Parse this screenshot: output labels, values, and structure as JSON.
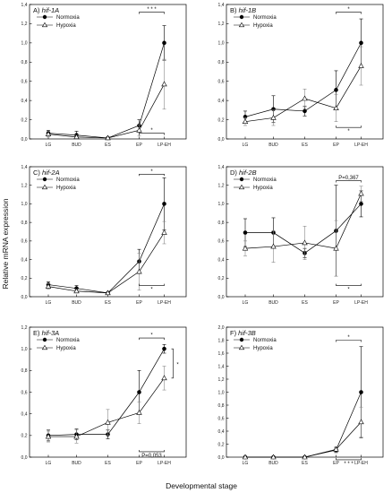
{
  "ylabel": "Relative mRNA expression",
  "xlabel": "Developmental stage",
  "chart_data": [
    {
      "type": "line",
      "letter": "A)",
      "gene": "hif-1A",
      "categories": [
        "LG",
        "BUD",
        "ES",
        "EP",
        "LP-EH"
      ],
      "ylim": [
        0,
        1.4
      ],
      "yticks": [
        "0,0",
        "0,2",
        "0,4",
        "0,6",
        "0,8",
        "1,0",
        "1,2",
        "1,4"
      ],
      "series": [
        {
          "name": "Normoxia",
          "values": [
            0.06,
            0.04,
            0.01,
            0.14,
            1.0
          ],
          "err": [
            0.03,
            0.04,
            0.01,
            0.06,
            0.18
          ]
        },
        {
          "name": "Hypoxia",
          "values": [
            0.05,
            0.02,
            0.01,
            0.09,
            0.57
          ],
          "err": [
            0.03,
            0.02,
            0.01,
            0.06,
            0.26
          ]
        }
      ],
      "annotations": [
        {
          "text": "* * *",
          "from": 3,
          "to": 4,
          "y": 1.32,
          "side": "above"
        },
        {
          "text": "*",
          "from": 3,
          "to": 4,
          "y": 0.06,
          "side": "above"
        }
      ]
    },
    {
      "type": "line",
      "letter": "B)",
      "gene": "hif-1B",
      "categories": [
        "LG",
        "BUD",
        "ES",
        "EP",
        "LP-EH"
      ],
      "ylim": [
        0,
        1.4
      ],
      "yticks": [
        "0,0",
        "0,2",
        "0,4",
        "0,6",
        "0,8",
        "1,0",
        "1,2",
        "1,4"
      ],
      "series": [
        {
          "name": "Normoxia",
          "values": [
            0.23,
            0.31,
            0.29,
            0.51,
            1.0
          ],
          "err": [
            0.06,
            0.14,
            0.05,
            0.2,
            0.25
          ]
        },
        {
          "name": "Hypoxia",
          "values": [
            0.18,
            0.22,
            0.42,
            0.32,
            0.76
          ],
          "err": [
            0.04,
            0.08,
            0.1,
            0.14,
            0.2
          ]
        }
      ],
      "annotations": [
        {
          "text": "*",
          "from": 3,
          "to": 4,
          "y": 1.32,
          "side": "above"
        },
        {
          "text": "*",
          "from": 3,
          "to": 4,
          "y": 0.12,
          "side": "below"
        }
      ]
    },
    {
      "type": "line",
      "letter": "C)",
      "gene": "hif-2A",
      "categories": [
        "LG",
        "BUD",
        "ES",
        "EP",
        "LP-EH"
      ],
      "ylim": [
        0,
        1.4
      ],
      "yticks": [
        "0,0",
        "0,2",
        "0,4",
        "0,6",
        "0,8",
        "1,0",
        "1,2",
        "1,4"
      ],
      "series": [
        {
          "name": "Normoxia",
          "values": [
            0.13,
            0.09,
            0.04,
            0.38,
            1.0
          ],
          "err": [
            0.03,
            0.03,
            0.01,
            0.13,
            0.28
          ]
        },
        {
          "name": "Hypoxia",
          "values": [
            0.11,
            0.06,
            0.04,
            0.27,
            0.69
          ],
          "err": [
            0.03,
            0.02,
            0.01,
            0.2,
            0.12
          ]
        }
      ],
      "annotations": [
        {
          "text": "*",
          "from": 3,
          "to": 4,
          "y": 1.32,
          "side": "above"
        },
        {
          "text": "*",
          "from": 3,
          "to": 4,
          "y": 0.12,
          "side": "below"
        }
      ]
    },
    {
      "type": "line",
      "letter": "D)",
      "gene": "hif-2B",
      "categories": [
        "LG",
        "BUD",
        "ES",
        "EP",
        "LP-EH"
      ],
      "ylim": [
        0,
        1.4
      ],
      "yticks": [
        "0,0",
        "0,2",
        "0,4",
        "0,6",
        "0,8",
        "1,0",
        "1,2",
        "1,4"
      ],
      "series": [
        {
          "name": "Normoxia",
          "values": [
            0.69,
            0.69,
            0.47,
            0.71,
            1.0
          ],
          "err": [
            0.15,
            0.16,
            0.05,
            0.49,
            0.14
          ]
        },
        {
          "name": "Hypoxia",
          "values": [
            0.52,
            0.54,
            0.58,
            0.52,
            1.11
          ],
          "err": [
            0.08,
            0.17,
            0.18,
            0.3,
            0.08
          ]
        }
      ],
      "annotations": [
        {
          "text": "P=0,367",
          "from": 3,
          "to": 4,
          "y": 1.25,
          "side": "above"
        },
        {
          "text": "*",
          "from": 3,
          "to": 4,
          "y": 0.12,
          "side": "below"
        }
      ]
    },
    {
      "type": "line",
      "letter": "E)",
      "gene": "hif-3A",
      "categories": [
        "LG",
        "BUD",
        "ES",
        "EP",
        "LP-EH"
      ],
      "ylim": [
        0,
        1.2
      ],
      "yticks": [
        "0,0",
        "0,2",
        "0,4",
        "0,6",
        "0,8",
        "1,0",
        "1,2"
      ],
      "series": [
        {
          "name": "Normoxia",
          "values": [
            0.2,
            0.21,
            0.21,
            0.6,
            1.0
          ],
          "err": [
            0.05,
            0.05,
            0.04,
            0.2,
            0.04
          ]
        },
        {
          "name": "Hypoxia",
          "values": [
            0.19,
            0.19,
            0.32,
            0.41,
            0.73
          ],
          "err": [
            0.05,
            0.06,
            0.12,
            0.1,
            0.11
          ]
        }
      ],
      "annotations": [
        {
          "text": "*",
          "from": 3,
          "to": 4,
          "y": 1.1,
          "side": "above"
        },
        {
          "text": "*",
          "from": 4,
          "to": 4,
          "y": 0.86,
          "side": "vertical"
        },
        {
          "text": "P=0,053",
          "from": 3,
          "to": 4,
          "y": 0.05,
          "side": "below"
        }
      ]
    },
    {
      "type": "line",
      "letter": "F)",
      "gene": "hif-3B",
      "categories": [
        "LG",
        "BUD",
        "ES",
        "EP",
        "LP-EH"
      ],
      "ylim": [
        0,
        2.0
      ],
      "yticks": [
        "0,0",
        "0,2",
        "0,4",
        "0,6",
        "0,8",
        "1,0",
        "1,2",
        "1,4",
        "1,6",
        "1,8",
        "2,0"
      ],
      "series": [
        {
          "name": "Normoxia",
          "values": [
            0.0,
            0.0,
            0.0,
            0.11,
            1.0
          ],
          "err": [
            0.0,
            0.0,
            0.0,
            0.04,
            0.7
          ]
        },
        {
          "name": "Hypoxia",
          "values": [
            0.0,
            0.0,
            0.0,
            0.12,
            0.54
          ],
          "err": [
            0.0,
            0.0,
            0.0,
            0.04,
            0.23
          ]
        }
      ],
      "annotations": [
        {
          "text": "*",
          "from": 3,
          "to": 4,
          "y": 1.8,
          "side": "above"
        },
        {
          "text": "* * *",
          "from": 3,
          "to": 4,
          "y": -0.04,
          "side": "below"
        }
      ]
    }
  ]
}
